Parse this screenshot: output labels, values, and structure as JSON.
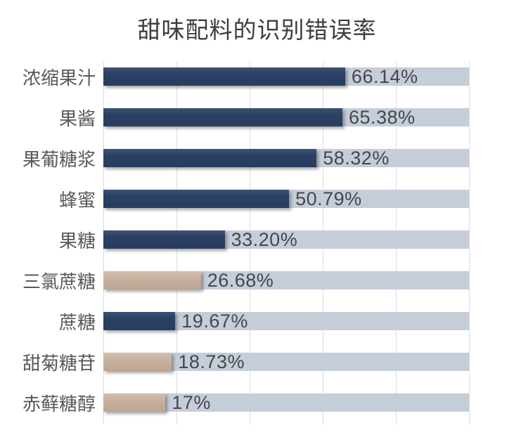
{
  "chart_data": {
    "type": "bar",
    "orientation": "horizontal",
    "title": "甜味配料的识别错误率",
    "categories": [
      "浓缩果汁",
      "果酱",
      "果葡糖浆",
      "蜂蜜",
      "果糖",
      "三氯蔗糖",
      "蔗糖",
      "甜菊糖苷",
      "赤藓糖醇"
    ],
    "values": [
      66.14,
      65.38,
      58.32,
      50.79,
      33.2,
      26.68,
      19.67,
      18.73,
      17
    ],
    "value_labels": [
      "66.14%",
      "65.38%",
      "58.32%",
      "50.79%",
      "33.20%",
      "26.68%",
      "19.67%",
      "18.73%",
      "17%"
    ],
    "bar_colors": [
      "navy",
      "navy",
      "navy",
      "navy",
      "navy",
      "tan",
      "navy",
      "tan",
      "tan"
    ],
    "xlabel": "",
    "ylabel": "",
    "xlim": [
      0,
      100
    ],
    "gridline_interval_pct": 20,
    "grid": true,
    "legend": false,
    "track_full_width_pct": 100,
    "palette": {
      "navy": "#2B4164",
      "tan": "#C6B09D",
      "track": "#C5CDD9",
      "gridline": "#DADDE2",
      "title_text": "#3D3D3D",
      "category_text": "#595959",
      "value_text": "#45474E",
      "background": "#FFFFFF"
    }
  }
}
